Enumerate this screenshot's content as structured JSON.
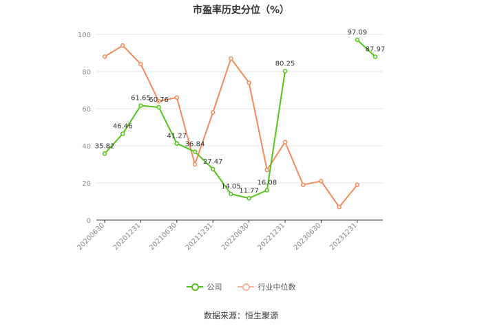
{
  "chart_data": {
    "type": "line",
    "title": "市盈率历史分位（%）",
    "x": [
      "20200630",
      "20200930",
      "20201231",
      "20210331",
      "20210630",
      "20210930",
      "20211231",
      "20220331",
      "20220630",
      "20220930",
      "20221231",
      "20230331",
      "20230630",
      "20230930",
      "20231231",
      "20240331"
    ],
    "x_tick_labels": [
      "20200630",
      "20201231",
      "20210630",
      "20211231",
      "20220630",
      "20221231",
      "20230630",
      "20231231"
    ],
    "ylim": [
      0,
      100
    ],
    "y_ticks": [
      0,
      20,
      40,
      60,
      80,
      100
    ],
    "grid": true,
    "legend_position": "bottom",
    "series": [
      {
        "name": "公司",
        "color": "#52c41a",
        "values": [
          35.82,
          46.46,
          61.65,
          60.76,
          41.27,
          36.84,
          27.47,
          14.05,
          11.77,
          16.08,
          80.25,
          null,
          null,
          null,
          97.09,
          87.97
        ],
        "labels": [
          "35.82",
          "46.46",
          "61.65",
          "60.76",
          "41.27",
          "36.84",
          "27.47",
          "14.05",
          "11.77",
          "16.08",
          "80.25",
          null,
          null,
          null,
          "97.09",
          "87.97"
        ]
      },
      {
        "name": "行业中位数",
        "color": "#f5895c",
        "values": [
          88,
          94,
          84,
          64,
          66,
          30,
          58,
          87,
          74,
          27,
          42,
          19,
          21,
          7,
          19,
          null
        ]
      }
    ]
  },
  "source": "数据来源：恒生聚源"
}
